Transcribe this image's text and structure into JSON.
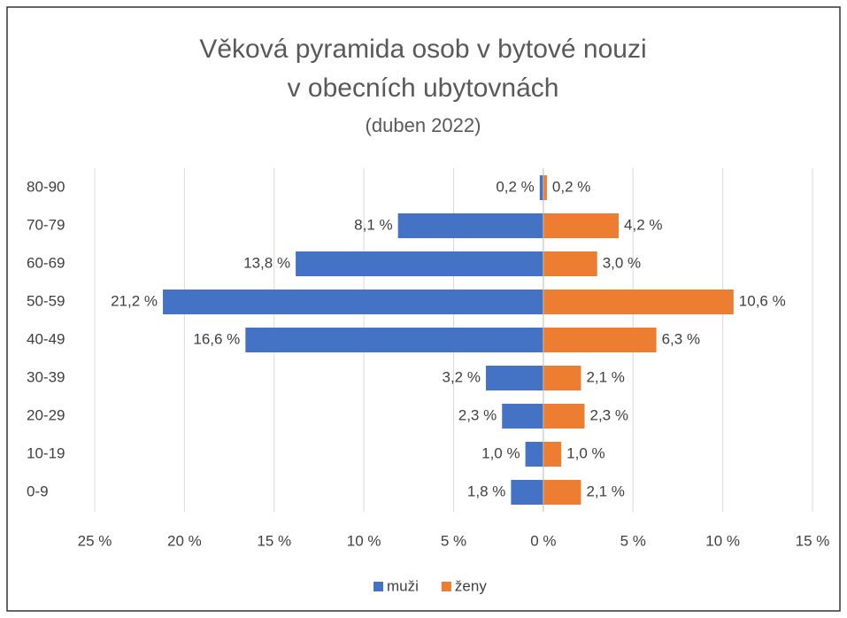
{
  "chart_data": {
    "type": "pyramid",
    "title_lines": [
      "Věková pyramida osob v bytové nouzi",
      "v obecních ubytovnách"
    ],
    "subtitle": "(duben 2022)",
    "categories": [
      "80-90",
      "70-79",
      "60-69",
      "50-59",
      "40-49",
      "30-39",
      "20-29",
      "10-19",
      "0-9"
    ],
    "series": [
      {
        "name": "muži",
        "color": "#4472c4",
        "values": [
          -0.2,
          -8.1,
          -13.8,
          -21.2,
          -16.6,
          -3.2,
          -2.3,
          -1.0,
          -1.8
        ],
        "value_labels": [
          "0,2 %",
          "8,1 %",
          "13,8 %",
          "21,2 %",
          "16,6 %",
          "3,2 %",
          "2,3 %",
          "1,0 %",
          "1,8 %"
        ]
      },
      {
        "name": "ženy",
        "color": "#ed7d31",
        "values": [
          0.2,
          4.2,
          3.0,
          10.6,
          6.3,
          2.1,
          2.3,
          1.0,
          2.1
        ],
        "value_labels": [
          "0,2 %",
          "4,2 %",
          "3,0 %",
          "10,6 %",
          "6,3 %",
          "2,1 %",
          "2,3 %",
          "1,0 %",
          "2,1 %"
        ]
      }
    ],
    "xlim": [
      -25,
      15
    ],
    "xticks": [
      {
        "value": -25,
        "label": "25 %"
      },
      {
        "value": -20,
        "label": "20 %"
      },
      {
        "value": -15,
        "label": "15 %"
      },
      {
        "value": -10,
        "label": "10 %"
      },
      {
        "value": -5,
        "label": "5 %"
      },
      {
        "value": 0,
        "label": "0 %"
      },
      {
        "value": 5,
        "label": "5 %"
      },
      {
        "value": 10,
        "label": "10 %"
      },
      {
        "value": 15,
        "label": "15 %"
      }
    ],
    "grid": true,
    "legend": "bottom"
  }
}
